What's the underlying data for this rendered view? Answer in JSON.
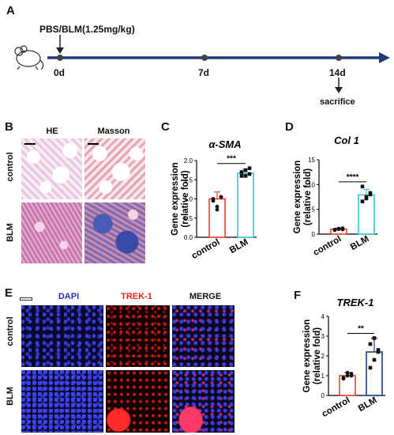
{
  "panels": {
    "A": "A",
    "B": "B",
    "C": "C",
    "D": "D",
    "E": "E",
    "F": "F"
  },
  "timeline": {
    "treatment": "PBS/BLM(1.25mg/kg)",
    "days": [
      "0d",
      "7d",
      "14d"
    ],
    "endpoint": "sacrifice"
  },
  "histology": {
    "stains": [
      "HE",
      "Masson"
    ],
    "groups": [
      "control",
      "BLM"
    ]
  },
  "fluor": {
    "channels": [
      "DAPI",
      "TREK-1",
      "MERGE"
    ],
    "groups": [
      "control",
      "BLM"
    ]
  },
  "colors": {
    "control": "#e8432f",
    "blm_c": "#3ec3d6",
    "blm_d": "#3ec3d6",
    "blm_f": "#1c3f7a",
    "teal": "#2e9e8e",
    "axis_arrow": "#1f3c7a"
  },
  "chart_data": [
    {
      "type": "bar",
      "title": "α-SMA",
      "ylabel": "Gene expression\n(relative fold)",
      "categories": [
        "control",
        "BLM"
      ],
      "values": [
        1.0,
        1.67
      ],
      "errors": [
        0.18,
        0.1
      ],
      "points": [
        [
          1.0,
          0.8,
          1.05,
          0.95,
          0.72,
          1.05
        ],
        [
          1.6,
          1.75,
          1.65,
          1.7,
          1.6,
          1.8
        ]
      ],
      "ylim": [
        0,
        2.0
      ],
      "yticks": [
        "0.0",
        "0.5",
        "1.0",
        "1.5",
        "2.0"
      ],
      "significance": "***"
    },
    {
      "type": "bar",
      "title": "Col 1",
      "ylabel": "Gene expression\n(relative fold)",
      "categories": [
        "control",
        "BLM"
      ],
      "values": [
        1.0,
        7.9
      ],
      "errors": [
        0.25,
        1.1
      ],
      "points": [
        [
          0.8,
          1.1,
          1.2,
          0.9,
          1.0,
          0.95
        ],
        [
          6.6,
          7.2,
          8.3,
          9.6,
          7.5,
          8.0
        ]
      ],
      "ylim": [
        0,
        15
      ],
      "yticks": [
        "0",
        "5",
        "10",
        "15"
      ],
      "significance": "****"
    },
    {
      "type": "bar",
      "title": "TREK-1",
      "ylabel": "Gene expression\n(relative fold)",
      "categories": [
        "control",
        "BLM"
      ],
      "values": [
        1.0,
        2.2
      ],
      "errors": [
        0.15,
        0.7
      ],
      "points": [
        [
          0.9,
          1.0,
          1.1,
          0.85,
          1.15,
          1.0
        ],
        [
          1.4,
          1.8,
          2.2,
          2.6,
          2.9,
          2.3
        ]
      ],
      "ylim": [
        0,
        4
      ],
      "yticks": [
        "0",
        "1",
        "2",
        "3",
        "4"
      ],
      "significance": "**"
    }
  ]
}
